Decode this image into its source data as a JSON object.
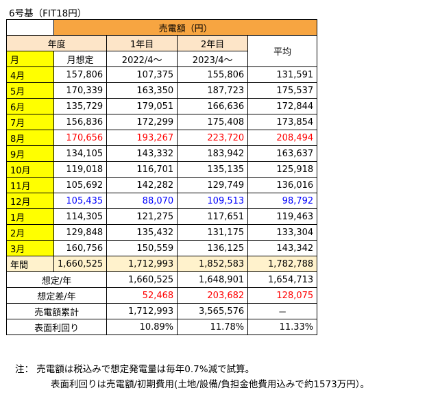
{
  "caption": "6号基（FIT18円）",
  "table": {
    "group_header": "売電額（円）",
    "col_nendo": "年度",
    "col_year1": "1年目",
    "col_year2": "2年目",
    "col_avg": "平均",
    "sub_month": "月",
    "sub_assumed": "月想定",
    "sub_year1": "2022/4～",
    "sub_year2": "2023/4～",
    "rows": [
      {
        "month": "4月",
        "assumed": "157,806",
        "y1": "107,375",
        "y2": "155,806",
        "avg": "131,591",
        "color": ""
      },
      {
        "month": "5月",
        "assumed": "170,339",
        "y1": "163,350",
        "y2": "187,723",
        "avg": "175,537",
        "color": ""
      },
      {
        "month": "6月",
        "assumed": "135,729",
        "y1": "179,051",
        "y2": "166,636",
        "avg": "172,844",
        "color": ""
      },
      {
        "month": "7月",
        "assumed": "156,836",
        "y1": "172,299",
        "y2": "175,408",
        "avg": "173,854",
        "color": ""
      },
      {
        "month": "8月",
        "assumed": "170,656",
        "y1": "193,267",
        "y2": "223,720",
        "avg": "208,494",
        "color": "red"
      },
      {
        "month": "9月",
        "assumed": "134,105",
        "y1": "143,332",
        "y2": "183,942",
        "avg": "163,637",
        "color": ""
      },
      {
        "month": "10月",
        "assumed": "119,018",
        "y1": "116,701",
        "y2": "135,135",
        "avg": "125,918",
        "color": ""
      },
      {
        "month": "11月",
        "assumed": "105,692",
        "y1": "142,282",
        "y2": "129,749",
        "avg": "136,016",
        "color": ""
      },
      {
        "month": "12月",
        "assumed": "105,435",
        "y1": "88,070",
        "y2": "109,513",
        "avg": "98,792",
        "color": "blue"
      },
      {
        "month": "1月",
        "assumed": "114,305",
        "y1": "121,275",
        "y2": "117,651",
        "avg": "119,463",
        "color": ""
      },
      {
        "month": "2月",
        "assumed": "129,848",
        "y1": "135,432",
        "y2": "131,175",
        "avg": "133,304",
        "color": ""
      },
      {
        "month": "3月",
        "assumed": "160,756",
        "y1": "150,559",
        "y2": "136,125",
        "avg": "143,342",
        "color": ""
      }
    ],
    "yearly": {
      "label": "年間",
      "assumed": "1,660,525",
      "y1": "1,712,993",
      "y2": "1,852,583",
      "avg": "1,782,788"
    },
    "summary": [
      {
        "label": "想定/年",
        "y1": "1,660,525",
        "y2": "1,648,901",
        "avg": "1,654,713",
        "color": ""
      },
      {
        "label": "想定差/年",
        "y1": "52,468",
        "y2": "203,682",
        "avg": "128,075",
        "color": "red"
      },
      {
        "label": "売電額累計",
        "y1": "1,712,993",
        "y2": "3,565,576",
        "avg": "－",
        "color": "",
        "avg_center": true
      },
      {
        "label": "表面利回り",
        "y1": "10.89%",
        "y2": "11.78%",
        "avg": "11.33%",
        "color": ""
      }
    ]
  },
  "notes": {
    "line1": "注：  売電額は税込みで想定発電量は毎年0.7%減で試算。",
    "line2": "表面利回りは売電額/初期費用(土地/設備/負担金他費用込みで約1573万円）。"
  },
  "colors": {
    "header": "#f7a541",
    "subheader": "#fde5c8",
    "month": "#ffff00",
    "yearly": "#fff2cc",
    "red": "#ff0000",
    "blue": "#0000ff"
  }
}
